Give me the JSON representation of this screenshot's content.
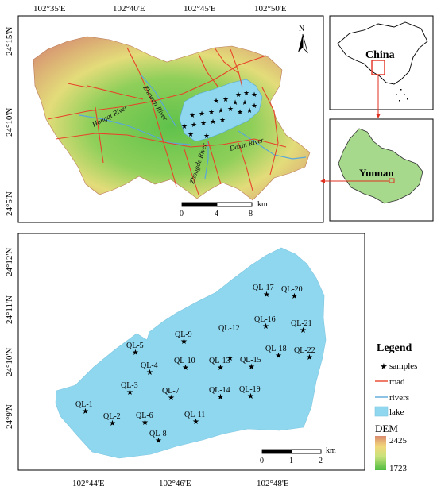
{
  "top_map": {
    "lon_ticks": [
      "102°35'E",
      "102°40'E",
      "102°45'E",
      "102°50'E"
    ],
    "lat_ticks": [
      "24°15'N",
      "24°10'N",
      "24°5'N"
    ],
    "rivers": [
      "Hongqi River",
      "Zhewan River",
      "Zhongde River",
      "Daxin River"
    ],
    "scale": {
      "labels": [
        "0",
        "4",
        "8"
      ],
      "unit": "km"
    },
    "north": "N"
  },
  "inset_china": {
    "label": "China"
  },
  "inset_yunnan": {
    "label": "Yunnan"
  },
  "bottom_map": {
    "lon_ticks": [
      "102°44'E",
      "102°46'E",
      "102°48'E"
    ],
    "lat_ticks": [
      "24°12'N",
      "24°11'N",
      "24°10'N",
      "24°9'N"
    ],
    "samples": [
      "QL-1",
      "QL-2",
      "QL-3",
      "QL-4",
      "QL-5",
      "QL-6",
      "QL-7",
      "QL-8",
      "QL-9",
      "QL-10",
      "QL-11",
      "QL-12",
      "QL-13",
      "QL-14",
      "QL-15",
      "QL-16",
      "QL-17",
      "QL-18",
      "QL-19",
      "QL-20",
      "QL-21",
      "QL-22"
    ],
    "scale": {
      "labels": [
        "0",
        "1",
        "2"
      ],
      "unit": "km"
    }
  },
  "legend": {
    "title": "Legend",
    "items": [
      "samples",
      "road",
      "rivers",
      "lake"
    ],
    "dem_title": "DEM",
    "dem_max": "2425",
    "dem_min": "1723"
  },
  "colors": {
    "lake": "#8fd7ef",
    "road": "#e8432a",
    "river": "#5aa8d8",
    "dem_high": "#d9826a",
    "dem_low": "#4dbb3f"
  }
}
